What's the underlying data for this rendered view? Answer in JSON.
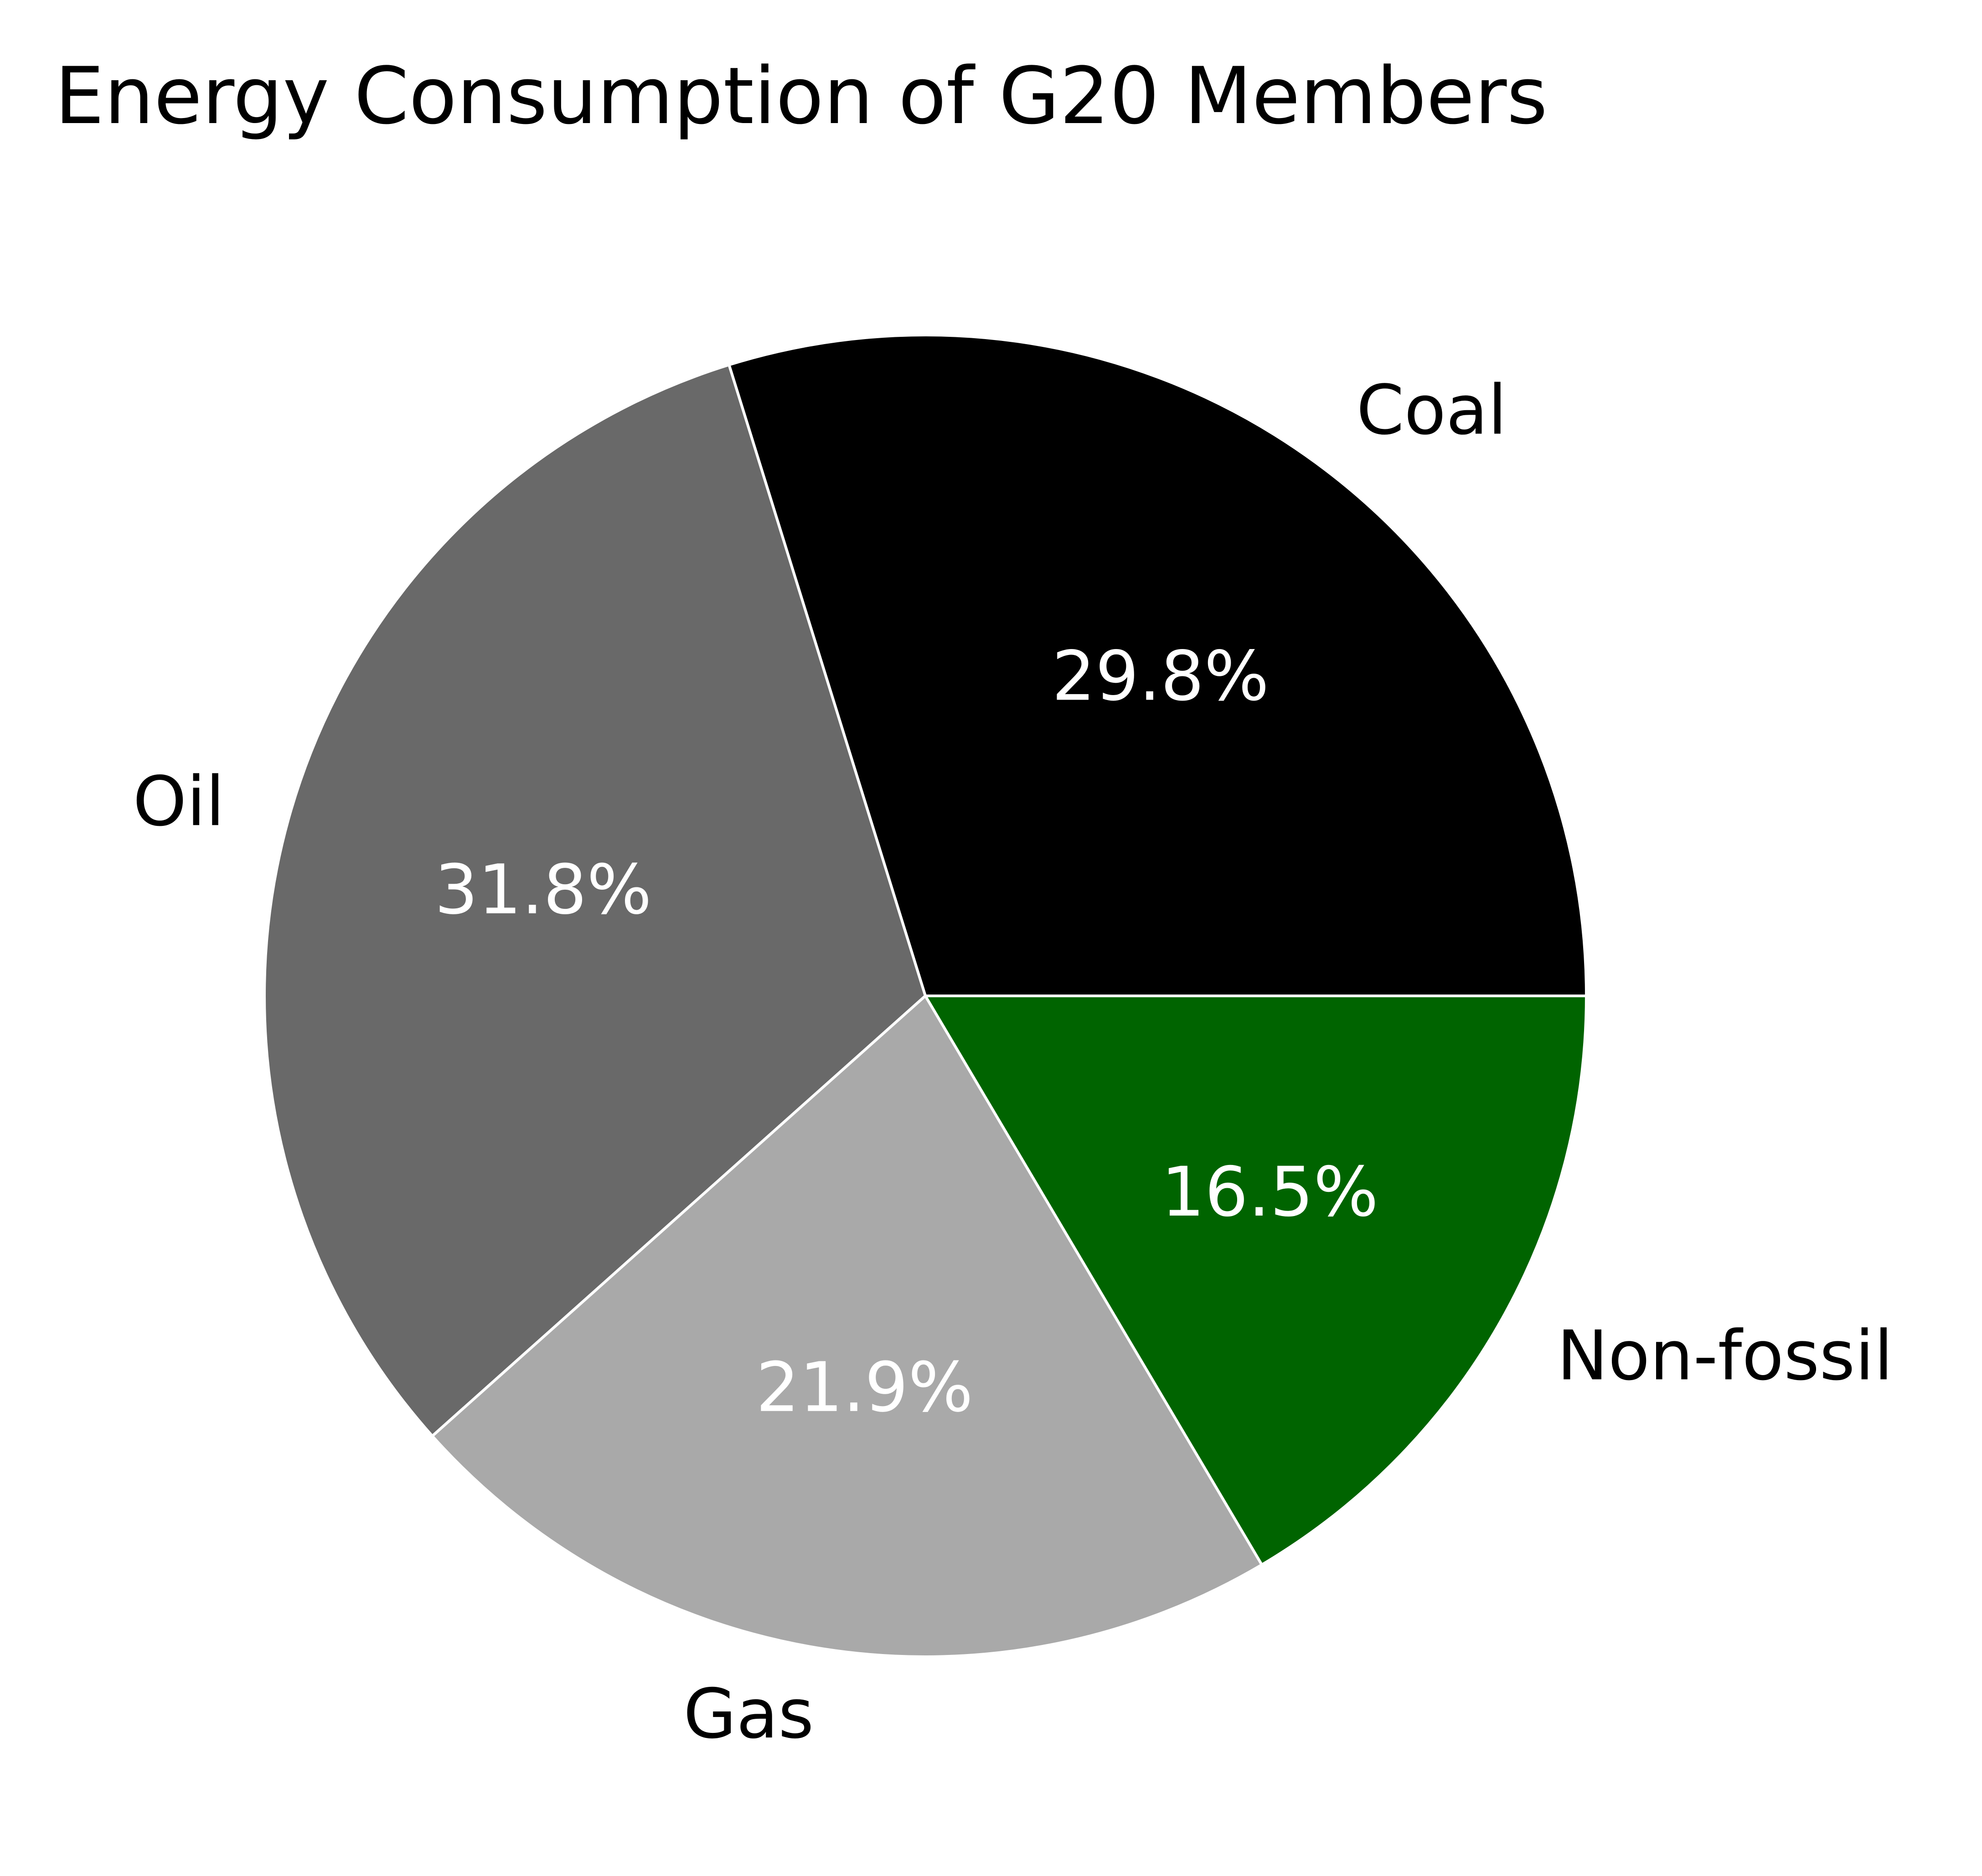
{
  "chart_data": {
    "type": "pie",
    "title": "Energy Consumption of G20 Members",
    "categories": [
      "Coal",
      "Oil",
      "Gas",
      "Non-fossil"
    ],
    "values": [
      29.8,
      31.8,
      21.9,
      16.5
    ],
    "value_labels": [
      "29.8%",
      "31.8%",
      "21.9%",
      "16.5%"
    ],
    "colors": [
      "#000000",
      "#696969",
      "#a9a9a9",
      "#006400"
    ],
    "start_angle_deg": 0,
    "direction": "counterclockwise",
    "edge_color": "#ffffff"
  }
}
